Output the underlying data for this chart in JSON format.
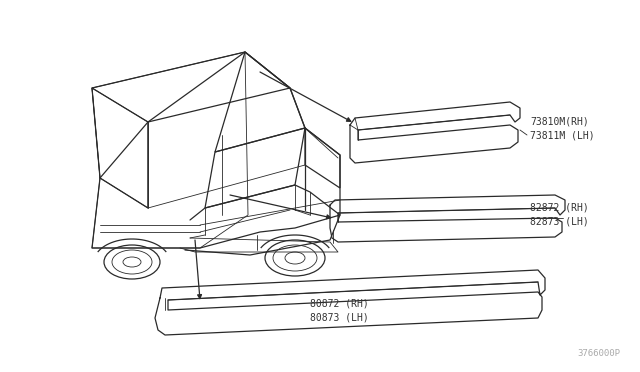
{
  "bg_color": "#ffffff",
  "line_color": "#2a2a2a",
  "label_color": "#333333",
  "diagram_id": "3766000P",
  "label1_text": "73810M(RH)\n73811M (LH)",
  "label2_text": "82872 (RH)\n82873 (LH)",
  "label3_text": "80872 (RH)\n80873 (LH)",
  "font_size": 7.0,
  "diagram_id_fontsize": 6.5
}
